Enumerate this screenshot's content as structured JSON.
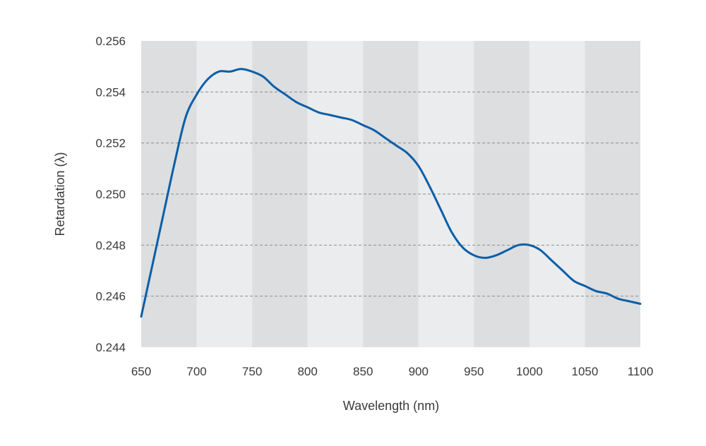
{
  "chart_data": {
    "type": "line",
    "xlabel": "Wavelength (nm)",
    "ylabel": "Retardation (λ)",
    "xlim": [
      650,
      1100
    ],
    "ylim": [
      0.244,
      0.256
    ],
    "xticks": [
      "650",
      "700",
      "750",
      "800",
      "850",
      "900",
      "950",
      "1000",
      "1050",
      "1100"
    ],
    "yticks": [
      "0.244",
      "0.246",
      "0.248",
      "0.250",
      "0.252",
      "0.254",
      "0.256"
    ],
    "grid": "horizontal dashed",
    "band_colors": [
      "#dcdee0",
      "#ebeced"
    ],
    "line_color": "#0a5ea8",
    "series": [
      {
        "x": [
          650,
          660,
          670,
          680,
          690,
          700,
          710,
          720,
          730,
          740,
          750,
          760,
          770,
          780,
          790,
          800,
          810,
          820,
          830,
          840,
          850,
          860,
          870,
          880,
          890,
          900,
          910,
          920,
          930,
          940,
          950,
          960,
          970,
          980,
          990,
          1000,
          1010,
          1020,
          1030,
          1040,
          1050,
          1060,
          1070,
          1080,
          1090,
          1100
        ],
        "y": [
          0.2452,
          0.2472,
          0.2492,
          0.2512,
          0.253,
          0.2539,
          0.2545,
          0.2548,
          0.2548,
          0.2549,
          0.2548,
          0.2546,
          0.2542,
          0.2539,
          0.2536,
          0.2534,
          0.2532,
          0.2531,
          0.253,
          0.2529,
          0.2527,
          0.2525,
          0.2522,
          0.2519,
          0.2516,
          0.2511,
          0.2503,
          0.2494,
          0.2485,
          0.2479,
          0.2476,
          0.2475,
          0.2476,
          0.2478,
          0.248,
          0.248,
          0.2478,
          0.2474,
          0.247,
          0.2466,
          0.2464,
          0.2462,
          0.2461,
          0.2459,
          0.2458,
          0.2457
        ]
      }
    ]
  }
}
